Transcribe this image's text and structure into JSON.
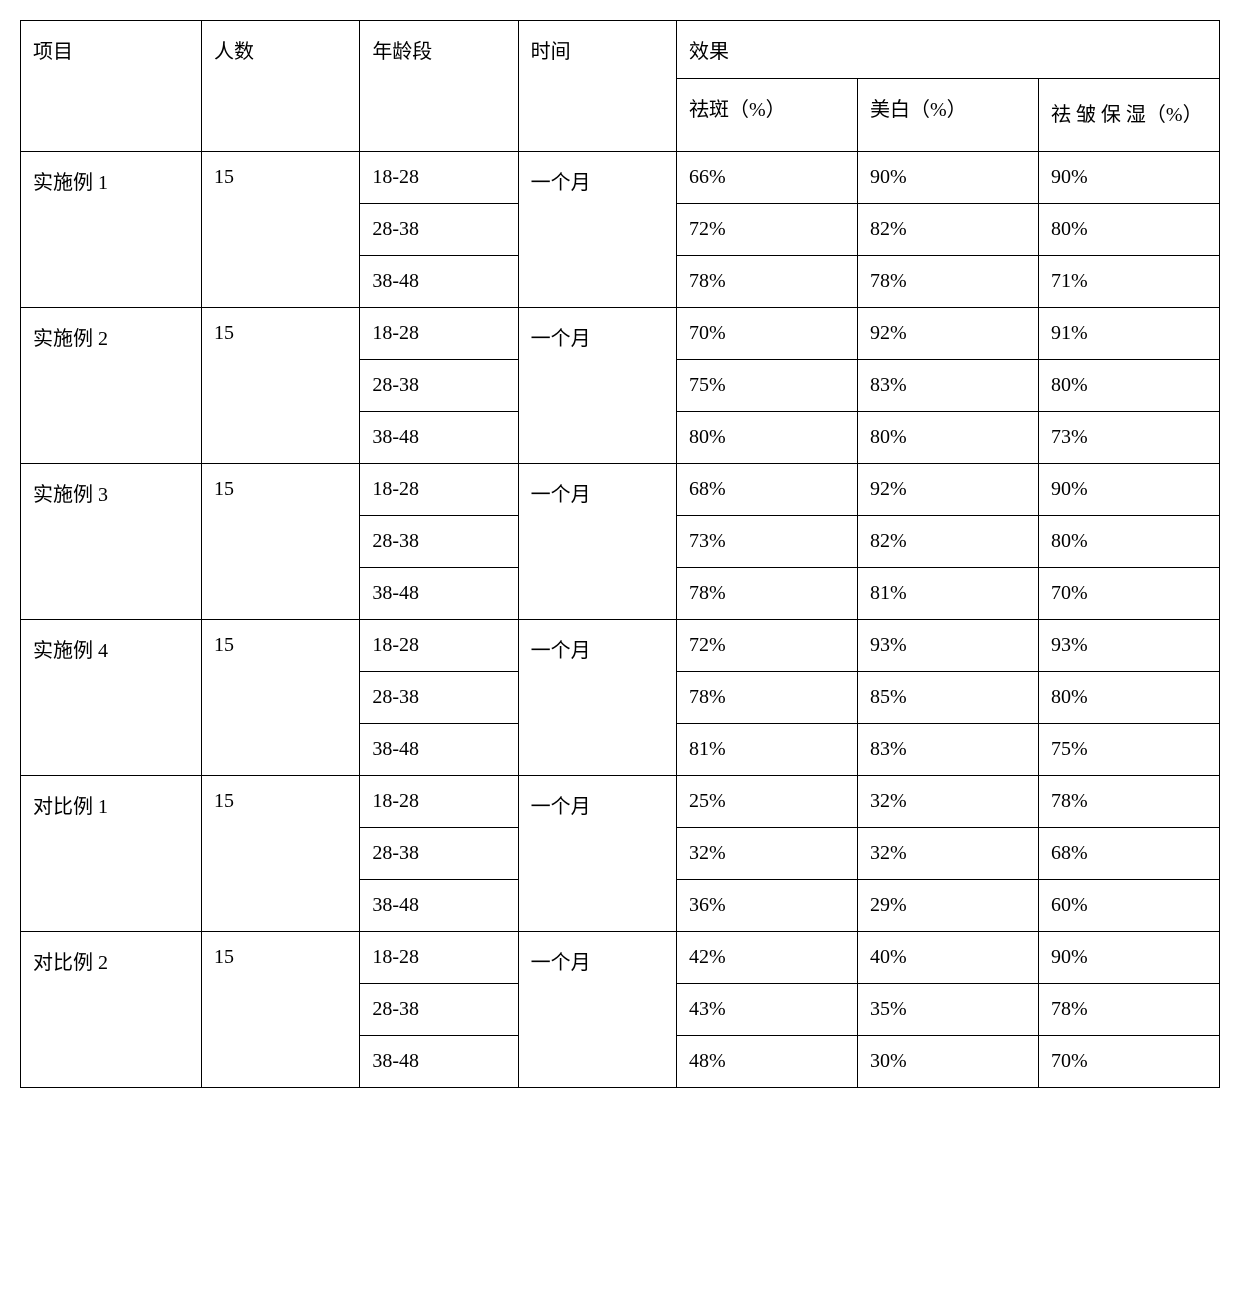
{
  "table": {
    "headers": {
      "project": "项目",
      "count": "人数",
      "age": "年龄段",
      "time": "时间",
      "effect": "效果",
      "effect_sub": {
        "quban": "祛斑（%）",
        "meibai": "美白（%）",
        "quzhoubaoshi": "祛 皱 保 湿（%）"
      }
    },
    "groups": [
      {
        "project": "实施例 1",
        "count": "15",
        "time": "一个月",
        "rows": [
          {
            "age": "18-28",
            "quban": "66%",
            "meibai": "90%",
            "quzhoubaoshi": "90%"
          },
          {
            "age": "28-38",
            "quban": "72%",
            "meibai": "82%",
            "quzhoubaoshi": "80%"
          },
          {
            "age": "38-48",
            "quban": "78%",
            "meibai": "78%",
            "quzhoubaoshi": "71%"
          }
        ]
      },
      {
        "project": "实施例 2",
        "count": "15",
        "time": "一个月",
        "rows": [
          {
            "age": "18-28",
            "quban": "70%",
            "meibai": "92%",
            "quzhoubaoshi": "91%"
          },
          {
            "age": "28-38",
            "quban": "75%",
            "meibai": "83%",
            "quzhoubaoshi": "80%"
          },
          {
            "age": "38-48",
            "quban": "80%",
            "meibai": "80%",
            "quzhoubaoshi": "73%"
          }
        ]
      },
      {
        "project": "实施例 3",
        "count": "15",
        "time": "一个月",
        "rows": [
          {
            "age": "18-28",
            "quban": "68%",
            "meibai": "92%",
            "quzhoubaoshi": "90%"
          },
          {
            "age": "28-38",
            "quban": "73%",
            "meibai": "82%",
            "quzhoubaoshi": "80%"
          },
          {
            "age": "38-48",
            "quban": "78%",
            "meibai": "81%",
            "quzhoubaoshi": "70%"
          }
        ]
      },
      {
        "project": "实施例 4",
        "count": "15",
        "time": "一个月",
        "rows": [
          {
            "age": "18-28",
            "quban": "72%",
            "meibai": "93%",
            "quzhoubaoshi": "93%"
          },
          {
            "age": "28-38",
            "quban": "78%",
            "meibai": "85%",
            "quzhoubaoshi": "80%"
          },
          {
            "age": "38-48",
            "quban": "81%",
            "meibai": "83%",
            "quzhoubaoshi": "75%"
          }
        ]
      },
      {
        "project": "对比例 1",
        "count": "15",
        "time": "一个月",
        "rows": [
          {
            "age": "18-28",
            "quban": "25%",
            "meibai": "32%",
            "quzhoubaoshi": "78%"
          },
          {
            "age": "28-38",
            "quban": "32%",
            "meibai": "32%",
            "quzhoubaoshi": "68%"
          },
          {
            "age": "38-48",
            "quban": "36%",
            "meibai": "29%",
            "quzhoubaoshi": "60%"
          }
        ]
      },
      {
        "project": "对比例 2",
        "count": "15",
        "time": "一个月",
        "rows": [
          {
            "age": "18-28",
            "quban": "42%",
            "meibai": "40%",
            "quzhoubaoshi": "90%"
          },
          {
            "age": "28-38",
            "quban": "43%",
            "meibai": "35%",
            "quzhoubaoshi": "78%"
          },
          {
            "age": "38-48",
            "quban": "48%",
            "meibai": "30%",
            "quzhoubaoshi": "70%"
          }
        ]
      }
    ]
  },
  "style": {
    "border_color": "#000000",
    "background_color": "#ffffff",
    "text_color": "#000000",
    "font_size": 20,
    "cell_padding": "14px 12px"
  }
}
